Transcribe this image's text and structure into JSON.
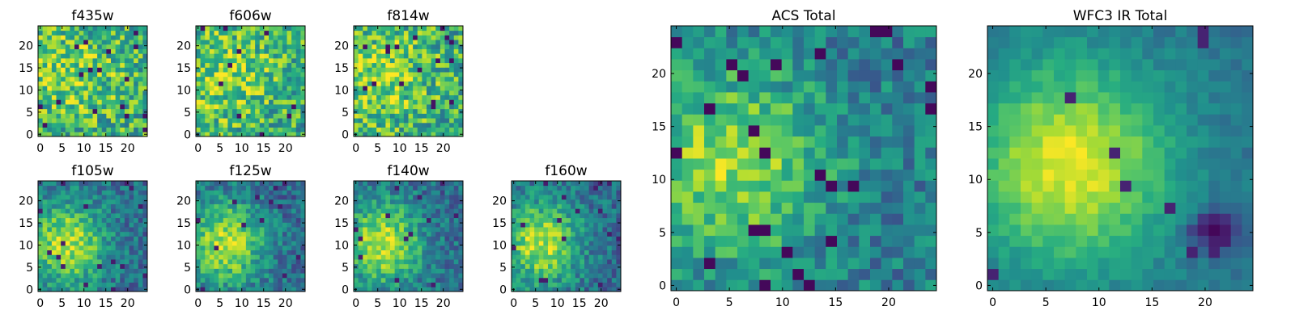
{
  "chart_data": [
    {
      "type": "heatmap",
      "title": "f435w",
      "xticks": [
        "0",
        "5",
        "10",
        "15",
        "20"
      ],
      "yticks": [
        "0",
        "5",
        "10",
        "15",
        "20"
      ],
      "xlim": [
        0,
        24
      ],
      "ylim": [
        0,
        24
      ],
      "cells": 24,
      "colormap": "viridis",
      "texture": "noisy"
    },
    {
      "type": "heatmap",
      "title": "f606w",
      "xticks": [
        "0",
        "5",
        "10",
        "15",
        "20"
      ],
      "yticks": [
        "0",
        "5",
        "10",
        "15",
        "20"
      ],
      "xlim": [
        0,
        24
      ],
      "ylim": [
        0,
        24
      ],
      "cells": 24,
      "colormap": "viridis",
      "texture": "noisy"
    },
    {
      "type": "heatmap",
      "title": "f814w",
      "xticks": [
        "0",
        "5",
        "10",
        "15",
        "20"
      ],
      "yticks": [
        "0",
        "5",
        "10",
        "15",
        "20"
      ],
      "xlim": [
        0,
        24
      ],
      "ylim": [
        0,
        24
      ],
      "cells": 24,
      "colormap": "viridis",
      "texture": "noisy"
    },
    {
      "type": "heatmap",
      "title": "f105w",
      "xticks": [
        "0",
        "5",
        "10",
        "15",
        "20"
      ],
      "yticks": [
        "0",
        "5",
        "10",
        "15",
        "20"
      ],
      "xlim": [
        0,
        24
      ],
      "ylim": [
        0,
        24
      ],
      "cells": 24,
      "colormap": "viridis",
      "texture": "blob"
    },
    {
      "type": "heatmap",
      "title": "f125w",
      "xticks": [
        "0",
        "5",
        "10",
        "15",
        "20"
      ],
      "yticks": [
        "0",
        "5",
        "10",
        "15",
        "20"
      ],
      "xlim": [
        0,
        24
      ],
      "ylim": [
        0,
        24
      ],
      "cells": 24,
      "colormap": "viridis",
      "texture": "blob"
    },
    {
      "type": "heatmap",
      "title": "f140w",
      "xticks": [
        "0",
        "5",
        "10",
        "15",
        "20"
      ],
      "yticks": [
        "0",
        "5",
        "10",
        "15",
        "20"
      ],
      "xlim": [
        0,
        24
      ],
      "ylim": [
        0,
        24
      ],
      "cells": 24,
      "colormap": "viridis",
      "texture": "blob"
    },
    {
      "type": "heatmap",
      "title": "f160w",
      "xticks": [
        "0",
        "5",
        "10",
        "15",
        "20"
      ],
      "yticks": [
        "0",
        "5",
        "10",
        "15",
        "20"
      ],
      "xlim": [
        0,
        24
      ],
      "ylim": [
        0,
        24
      ],
      "cells": 24,
      "colormap": "viridis",
      "texture": "blob"
    },
    {
      "type": "heatmap",
      "title": "ACS Total",
      "xticks": [
        "0",
        "5",
        "10",
        "15",
        "20"
      ],
      "yticks": [
        "0",
        "5",
        "10",
        "15",
        "20"
      ],
      "xlim": [
        0,
        24
      ],
      "ylim": [
        0,
        24
      ],
      "cells": 24,
      "colormap": "viridis",
      "texture": "acs"
    },
    {
      "type": "heatmap",
      "title": "WFC3 IR Total",
      "xticks": [
        "0",
        "5",
        "10",
        "15",
        "20"
      ],
      "yticks": [
        "0",
        "5",
        "10",
        "15",
        "20"
      ],
      "xlim": [
        0,
        24
      ],
      "ylim": [
        0,
        24
      ],
      "cells": 24,
      "colormap": "viridis",
      "texture": "ir"
    }
  ]
}
